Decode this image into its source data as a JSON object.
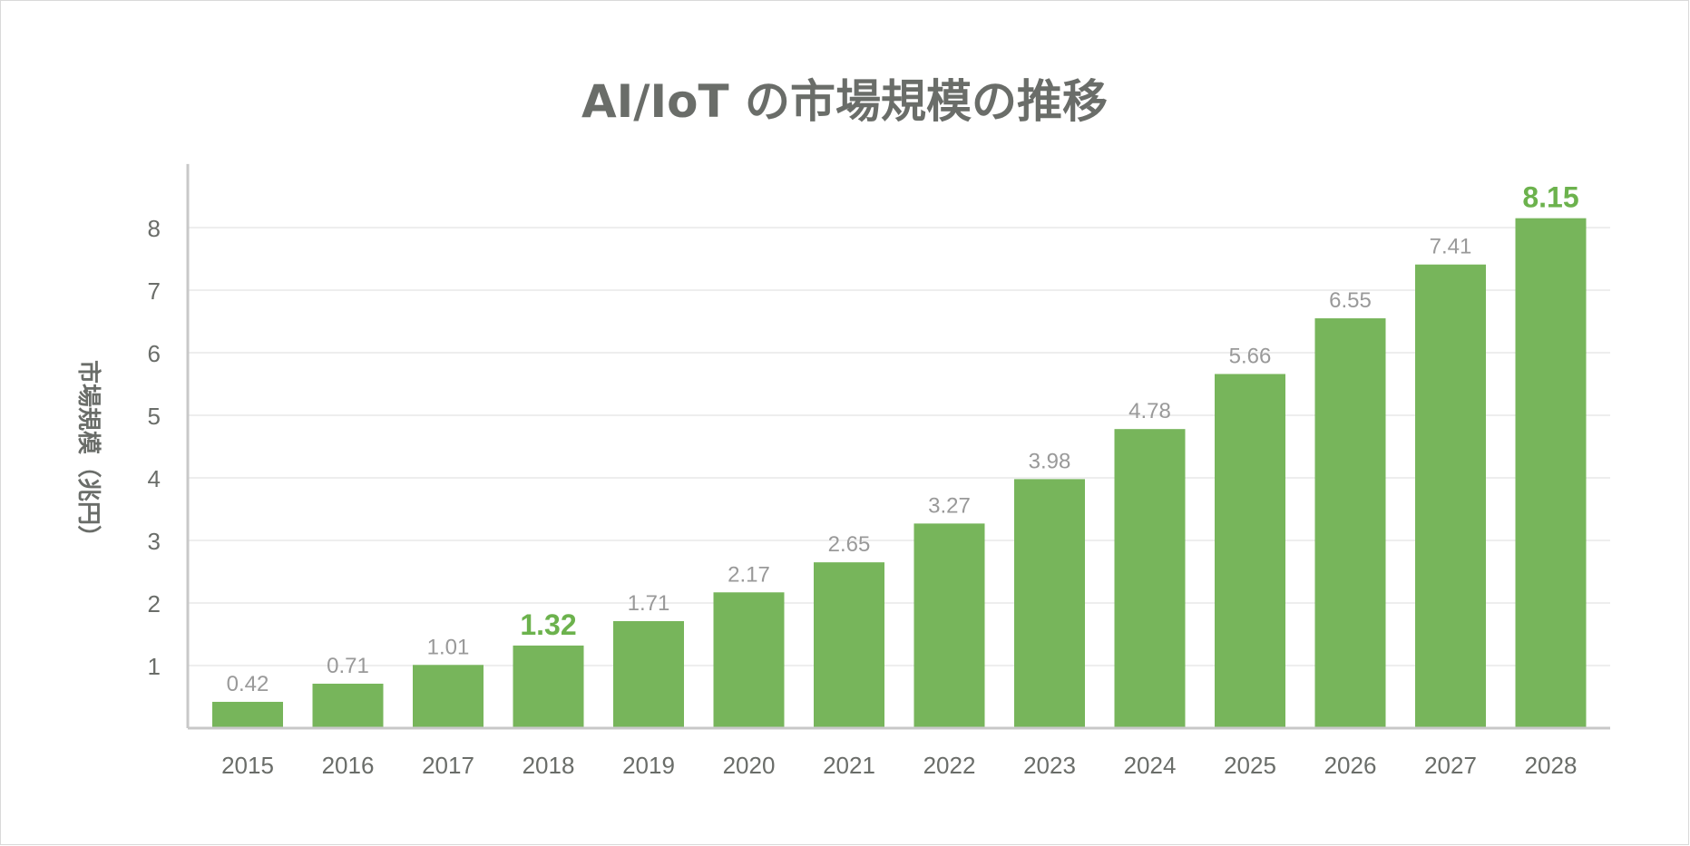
{
  "chart_data": {
    "type": "bar",
    "title": "AI/IoT の市場規模の推移",
    "xlabel": "",
    "ylabel": "市場規模（兆円）",
    "categories": [
      "2015",
      "2016",
      "2017",
      "2018",
      "2019",
      "2020",
      "2021",
      "2022",
      "2023",
      "2024",
      "2025",
      "2026",
      "2027",
      "2028"
    ],
    "values": [
      0.42,
      0.71,
      1.01,
      1.32,
      1.71,
      2.17,
      2.65,
      3.27,
      3.98,
      4.78,
      5.66,
      6.55,
      7.41,
      8.15
    ],
    "value_labels": [
      "0.42",
      "0.71",
      "1.01",
      "1.32",
      "1.71",
      "2.17",
      "2.65",
      "3.27",
      "3.98",
      "4.78",
      "5.66",
      "6.55",
      "7.41",
      "8.15"
    ],
    "highlighted_categories": [
      "2018",
      "2028"
    ],
    "yticks": [
      "1",
      "2",
      "3",
      "4",
      "5",
      "6",
      "7",
      "8"
    ],
    "ylim": [
      0,
      8.9
    ],
    "grid": true,
    "legend": "none",
    "colors": {
      "bar": "#77b55b",
      "highlight_label": "#6cb24d",
      "value_label": "#999999",
      "text": "#6a6d69",
      "grid": "#e8e8e8",
      "axis": "#c8c8c8"
    }
  }
}
